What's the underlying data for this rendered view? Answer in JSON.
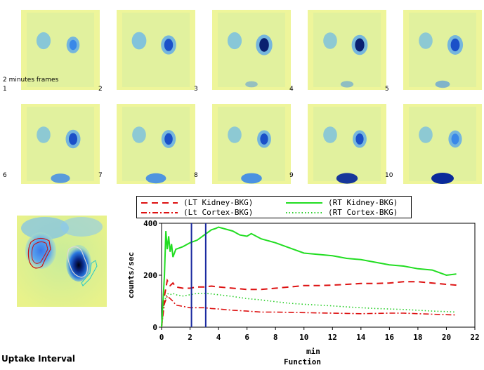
{
  "frames": {
    "caption": "2 minutes frames",
    "labels": [
      "1",
      "2",
      "3",
      "4",
      "5",
      "6",
      "7",
      "8",
      "9",
      "10"
    ]
  },
  "uptake_label": "Uptake Interval",
  "colors": {
    "lt_kidney": "#dd1111",
    "lt_cortex": "#dd1111",
    "rt_kidney": "#22dd22",
    "rt_cortex": "#22cc22",
    "interval_lines": "#1a2aa0",
    "image_bg": "#e9f28a"
  },
  "legend": {
    "items": [
      "(LT Kidney-BKG)",
      "(Lt Cortex-BKG)",
      "(RT Kidney-BKG)",
      "(RT Cortex-BKG)"
    ]
  },
  "chart_data": {
    "type": "line",
    "xlabel": "min",
    "ylabel": "counts/sec",
    "subtitle": "Function",
    "xlim": [
      0,
      22
    ],
    "ylim": [
      0,
      400
    ],
    "xticks": [
      0,
      2,
      4,
      6,
      8,
      10,
      12,
      14,
      16,
      18,
      20,
      22
    ],
    "yticks": [
      0,
      200,
      400
    ],
    "interval_markers": [
      2.1,
      3.1
    ],
    "series": [
      {
        "name": "(LT Kidney-BKG)",
        "style": "dashed",
        "x": [
          0,
          0.2,
          0.4,
          0.6,
          0.8,
          1,
          1.5,
          2,
          2.5,
          3,
          3.5,
          4,
          5,
          6,
          7,
          8,
          9,
          10,
          11,
          12,
          13,
          14,
          15,
          16,
          17,
          18,
          19,
          20,
          20.7
        ],
        "y": [
          0,
          120,
          180,
          160,
          170,
          155,
          150,
          150,
          155,
          155,
          158,
          155,
          150,
          145,
          145,
          150,
          155,
          160,
          160,
          162,
          165,
          168,
          168,
          170,
          175,
          175,
          170,
          165,
          162
        ]
      },
      {
        "name": "(Lt Cortex-BKG)",
        "style": "dashdot",
        "x": [
          0,
          0.2,
          0.4,
          0.6,
          0.8,
          1,
          1.5,
          2,
          2.5,
          3,
          3.5,
          4,
          5,
          6,
          7,
          8,
          9,
          10,
          11,
          12,
          13,
          14,
          15,
          16,
          17,
          18,
          19,
          20,
          20.7
        ],
        "y": [
          0,
          90,
          120,
          110,
          100,
          85,
          80,
          75,
          75,
          75,
          72,
          70,
          65,
          62,
          58,
          58,
          57,
          56,
          55,
          54,
          53,
          52,
          53,
          54,
          54,
          52,
          50,
          48,
          47
        ]
      },
      {
        "name": "(RT Kidney-BKG)",
        "style": "solid",
        "x": [
          0,
          0.2,
          0.3,
          0.4,
          0.5,
          0.6,
          0.7,
          0.8,
          1,
          1.5,
          2,
          2.5,
          3,
          3.5,
          3.8,
          4,
          5,
          5.5,
          6,
          6.3,
          7,
          8,
          9,
          10,
          11,
          12,
          13,
          14,
          15,
          16,
          17,
          18,
          19,
          20,
          20.7
        ],
        "y": [
          0,
          200,
          370,
          300,
          350,
          290,
          320,
          270,
          300,
          310,
          325,
          335,
          355,
          375,
          380,
          385,
          370,
          355,
          350,
          360,
          340,
          325,
          305,
          285,
          280,
          275,
          265,
          260,
          250,
          240,
          235,
          225,
          220,
          200,
          205
        ]
      },
      {
        "name": "(RT Cortex-BKG)",
        "style": "dotted",
        "x": [
          0,
          0.2,
          0.4,
          0.6,
          0.8,
          1,
          1.5,
          2,
          2.5,
          3,
          3.5,
          4,
          5,
          6,
          7,
          8,
          9,
          10,
          11,
          12,
          13,
          14,
          15,
          16,
          17,
          18,
          19,
          20,
          20.7
        ],
        "y": [
          0,
          100,
          130,
          125,
          130,
          125,
          120,
          125,
          130,
          130,
          128,
          125,
          118,
          110,
          105,
          98,
          92,
          88,
          85,
          82,
          78,
          75,
          72,
          70,
          68,
          65,
          62,
          60,
          58
        ]
      }
    ]
  }
}
